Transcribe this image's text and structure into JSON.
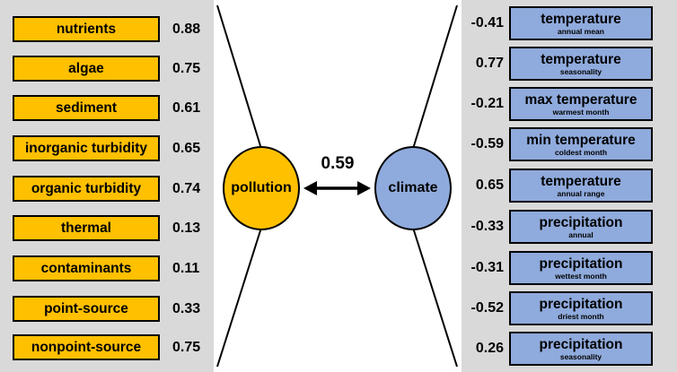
{
  "pollution": {
    "label": "pollution",
    "color": "#ffc000",
    "indicators": [
      {
        "label": "nutrients",
        "loading": "0.88"
      },
      {
        "label": "algae",
        "loading": "0.75"
      },
      {
        "label": "sediment",
        "loading": "0.61"
      },
      {
        "label": "inorganic turbidity",
        "loading": "0.65"
      },
      {
        "label": "organic turbidity",
        "loading": "0.74"
      },
      {
        "label": "thermal",
        "loading": "0.13"
      },
      {
        "label": "contaminants",
        "loading": "0.11"
      },
      {
        "label": "point-source",
        "loading": "0.33"
      },
      {
        "label": "nonpoint-source",
        "loading": "0.75"
      }
    ]
  },
  "climate": {
    "label": "climate",
    "color": "#8faadc",
    "indicators": [
      {
        "label": "temperature",
        "sublabel": "annual mean",
        "loading": "-0.41"
      },
      {
        "label": "temperature",
        "sublabel": "seasonality",
        "loading": "0.77"
      },
      {
        "label": "max temperature",
        "sublabel": "warmest month",
        "loading": "-0.21"
      },
      {
        "label": "min temperature",
        "sublabel": "coldest month",
        "loading": "-0.59"
      },
      {
        "label": "temperature",
        "sublabel": "annual range",
        "loading": "0.65"
      },
      {
        "label": "precipitation",
        "sublabel": "annual",
        "loading": "-0.33"
      },
      {
        "label": "precipitation",
        "sublabel": "wettest month",
        "loading": "-0.31"
      },
      {
        "label": "precipitation",
        "sublabel": "driest month",
        "loading": "-0.52"
      },
      {
        "label": "precipitation",
        "sublabel": "seasonality",
        "loading": "0.26"
      }
    ]
  },
  "correlation": "0.59"
}
